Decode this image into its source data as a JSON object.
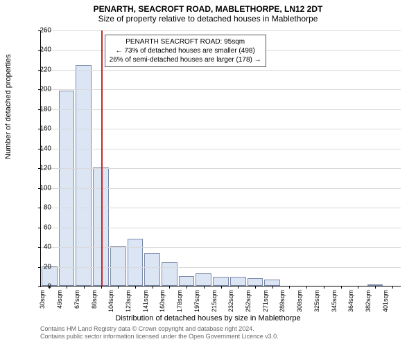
{
  "title": {
    "main": "PENARTH, SEACROFT ROAD, MABLETHORPE, LN12 2DT",
    "sub": "Size of property relative to detached houses in Mablethorpe"
  },
  "chart": {
    "type": "histogram",
    "background_color": "#ffffff",
    "grid_color": "#d9d9d9",
    "bar_fill": "#dbe5f4",
    "bar_stroke": "#7a8aa8",
    "ref_line_color": "#c62828",
    "ylabel": "Number of detached properties",
    "xlabel": "Distribution of detached houses by size in Mablethorpe",
    "ylim": [
      0,
      260
    ],
    "ytick_step": 20,
    "categories": [
      "30sqm",
      "49sqm",
      "67sqm",
      "86sqm",
      "104sqm",
      "123sqm",
      "141sqm",
      "160sqm",
      "178sqm",
      "197sqm",
      "215sqm",
      "232sqm",
      "252sqm",
      "271sqm",
      "289sqm",
      "308sqm",
      "325sqm",
      "345sqm",
      "364sqm",
      "382sqm",
      "401sqm"
    ],
    "values": [
      20,
      198,
      224,
      120,
      40,
      48,
      33,
      24,
      10,
      13,
      9,
      9,
      8,
      6,
      0,
      0,
      0,
      0,
      0,
      1,
      0
    ],
    "reference_index": 3,
    "reference_offset": 0.5,
    "bar_width": 0.92,
    "label_fontsize": 11,
    "tick_fontsize": 10
  },
  "annotation": {
    "line1": "PENARTH SEACROFT ROAD: 95sqm",
    "line2": "← 73% of detached houses are smaller (498)",
    "line3": "26% of semi-detached houses are larger (178) →",
    "border_color": "#555555",
    "background": "#ffffff",
    "fontsize": 10
  },
  "footnote": {
    "line1": "Contains HM Land Registry data © Crown copyright and database right 2024.",
    "line2": "Contains public sector information licensed under the Open Government Licence v3.0.",
    "color": "#666666",
    "fontsize": 9
  }
}
